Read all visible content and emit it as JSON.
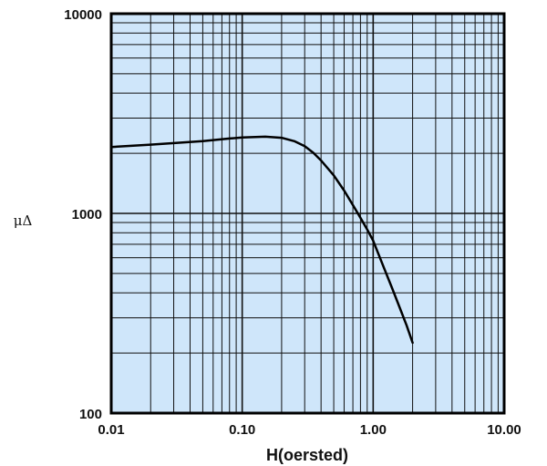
{
  "chart_data": {
    "type": "line",
    "title": "",
    "xlabel": "H(oersted)",
    "ylabel": "μΔ",
    "x_scale": "log",
    "y_scale": "log",
    "xlim": [
      0.01,
      10
    ],
    "ylim": [
      100,
      10000
    ],
    "x_tick_labels": [
      "0.01",
      "0.10",
      "1.00",
      "10.00"
    ],
    "x_tick_values": [
      0.01,
      0.1,
      1,
      10
    ],
    "y_tick_labels": [
      "100",
      "1000",
      "10000"
    ],
    "y_tick_values": [
      100,
      1000,
      10000
    ],
    "grid": true,
    "colors": {
      "plot_background": "#cfe6fa",
      "grid": "#111111",
      "curve": "#000000",
      "frame": "#000000"
    },
    "series": [
      {
        "values": [
          [
            0.01,
            2150
          ],
          [
            0.02,
            2210
          ],
          [
            0.05,
            2300
          ],
          [
            0.08,
            2370
          ],
          [
            0.1,
            2400
          ],
          [
            0.15,
            2420
          ],
          [
            0.2,
            2390
          ],
          [
            0.25,
            2300
          ],
          [
            0.3,
            2170
          ],
          [
            0.35,
            2010
          ],
          [
            0.4,
            1840
          ],
          [
            0.5,
            1550
          ],
          [
            0.6,
            1300
          ],
          [
            0.7,
            1100
          ],
          [
            0.8,
            950
          ],
          [
            0.9,
            830
          ],
          [
            1.0,
            730
          ],
          [
            1.2,
            540
          ],
          [
            1.4,
            420
          ],
          [
            1.6,
            335
          ],
          [
            1.8,
            275
          ],
          [
            2.0,
            225
          ]
        ]
      }
    ]
  }
}
